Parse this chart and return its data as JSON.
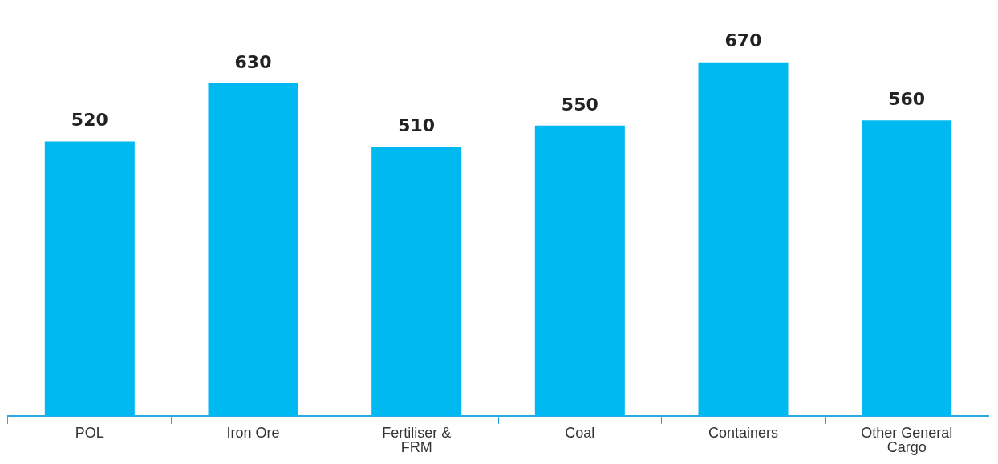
{
  "chart_data": {
    "type": "bar",
    "categories": [
      "POL",
      "Iron Ore",
      "Fertiliser & FRM",
      "Coal",
      "Containers",
      "Other General Cargo"
    ],
    "values": [
      520,
      630,
      510,
      550,
      670,
      560
    ],
    "color": "#00b9f1",
    "data_labels": true
  }
}
